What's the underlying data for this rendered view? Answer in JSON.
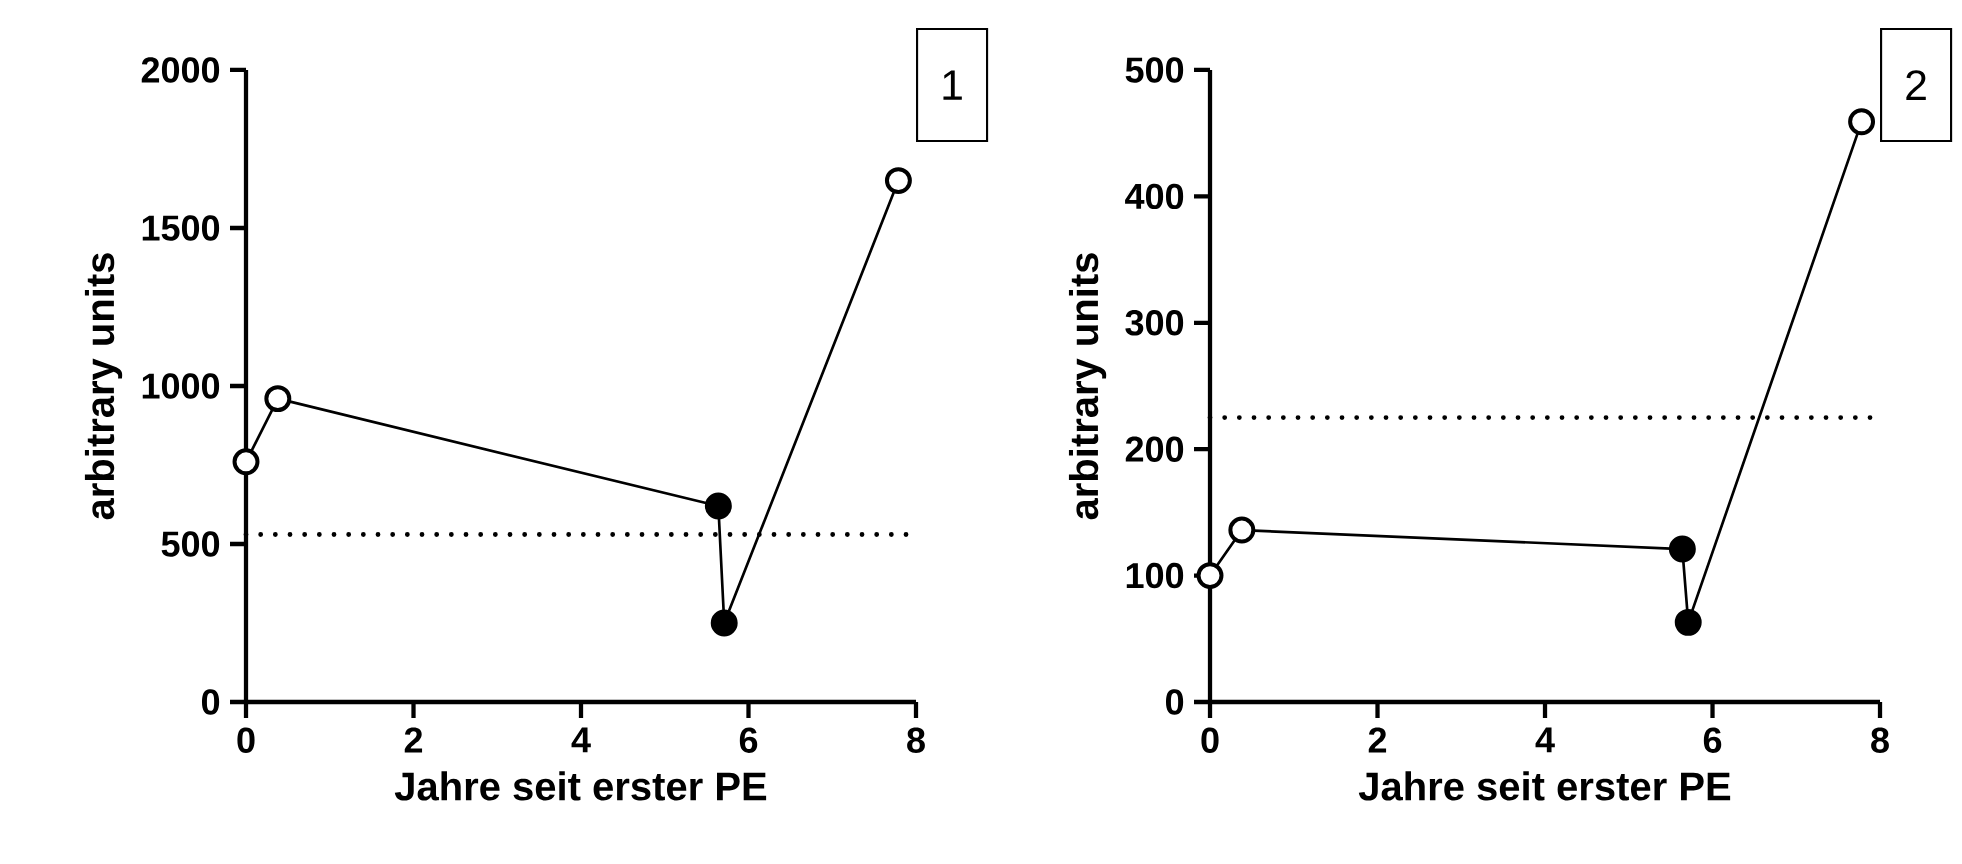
{
  "chart_data": [
    {
      "type": "line",
      "xlabel": "Jahre seit erster PE",
      "ylabel": "arbitrary units",
      "xlim": [
        0,
        8
      ],
      "ylim": [
        0,
        2000
      ],
      "xticks": [
        0,
        2,
        4,
        6,
        8
      ],
      "yticks": [
        0,
        500,
        1000,
        1500,
        2000
      ],
      "annotations": [
        "1"
      ],
      "series": [
        {
          "type": "line",
          "color": "#000000",
          "x": [
            0,
            0.38,
            5.64,
            5.71,
            7.79
          ],
          "values": [
            760,
            960,
            620,
            250,
            1650
          ]
        },
        {
          "type": "scatter",
          "color": "#ffffff",
          "marker": "circle",
          "x": [
            0,
            0.38,
            7.79
          ],
          "values": [
            760,
            960,
            1650
          ]
        },
        {
          "type": "scatter",
          "color": "#000000",
          "marker": "circle",
          "x": [
            5.64,
            5.71
          ],
          "values": [
            620,
            250
          ]
        }
      ],
      "ref_lines": [
        {
          "axis": "y",
          "value": 530,
          "color": "#000000",
          "line_style": "dotted"
        }
      ]
    },
    {
      "type": "line",
      "xlabel": "Jahre seit erster PE",
      "ylabel": "arbitrary units",
      "xlim": [
        0,
        8
      ],
      "ylim": [
        0,
        500
      ],
      "xticks": [
        0,
        2,
        4,
        6,
        8
      ],
      "yticks": [
        0,
        100,
        200,
        300,
        400,
        500
      ],
      "annotations": [
        "2"
      ],
      "series": [
        {
          "type": "line",
          "color": "#000000",
          "x": [
            0,
            0.38,
            5.64,
            5.71,
            7.78
          ],
          "values": [
            100,
            136,
            121,
            63,
            459
          ]
        },
        {
          "type": "scatter",
          "color": "#ffffff",
          "marker": "circle",
          "x": [
            0,
            0.38,
            7.78
          ],
          "values": [
            100,
            136,
            459
          ]
        },
        {
          "type": "scatter",
          "color": "#000000",
          "marker": "circle",
          "x": [
            5.64,
            5.71
          ],
          "values": [
            121,
            63
          ]
        }
      ],
      "ref_lines": [
        {
          "axis": "y",
          "value": 225,
          "color": "#000000",
          "line_style": "dotted"
        }
      ]
    }
  ]
}
